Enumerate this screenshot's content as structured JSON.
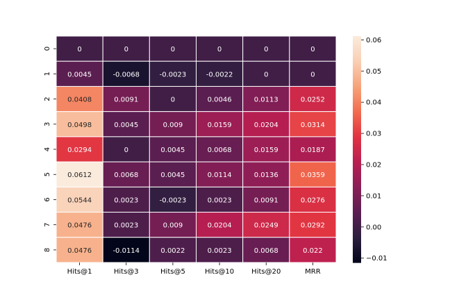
{
  "chart_data": {
    "type": "heatmap",
    "title": "",
    "xlabel": "",
    "ylabel": "",
    "x_categories": [
      "Hits@1",
      "Hits@3",
      "Hits@5",
      "Hits@10",
      "Hits@20",
      "MRR"
    ],
    "y_categories": [
      "0",
      "1",
      "2",
      "3",
      "4",
      "5",
      "6",
      "7",
      "8"
    ],
    "cell_labels": [
      [
        "0",
        "0",
        "0",
        "0",
        "0",
        "0"
      ],
      [
        "0.0045",
        "-0.0068",
        "-0.0023",
        "-0.0022",
        "0",
        "0"
      ],
      [
        "0.0408",
        "0.0091",
        "0",
        "0.0046",
        "0.0113",
        "0.0252"
      ],
      [
        "0.0498",
        "0.0045",
        "0.009",
        "0.0159",
        "0.0204",
        "0.0314"
      ],
      [
        "0.0294",
        "0",
        "0.0045",
        "0.0068",
        "0.0159",
        "0.0187"
      ],
      [
        "0.0612",
        "0.0068",
        "0.0045",
        "0.0114",
        "0.0136",
        "0.0359"
      ],
      [
        "0.0544",
        "0.0023",
        "-0.0023",
        "0.0023",
        "0.0091",
        "0.0276"
      ],
      [
        "0.0476",
        "0.0023",
        "0.009",
        "0.0204",
        "0.0249",
        "0.0292"
      ],
      [
        "0.0476",
        "-0.0114",
        "0.0022",
        "0.0023",
        "0.0068",
        "0.022"
      ]
    ],
    "values": [
      [
        0,
        0,
        0,
        0,
        0,
        0
      ],
      [
        0.0045,
        -0.0068,
        -0.0023,
        -0.0022,
        0,
        0
      ],
      [
        0.0408,
        0.0091,
        0,
        0.0046,
        0.0113,
        0.0252
      ],
      [
        0.0498,
        0.0045,
        0.009,
        0.0159,
        0.0204,
        0.0314
      ],
      [
        0.0294,
        0,
        0.0045,
        0.0068,
        0.0159,
        0.0187
      ],
      [
        0.0612,
        0.0068,
        0.0045,
        0.0114,
        0.0136,
        0.0359
      ],
      [
        0.0544,
        0.0023,
        -0.0023,
        0.0023,
        0.0091,
        0.0276
      ],
      [
        0.0476,
        0.0023,
        0.009,
        0.0204,
        0.0249,
        0.0292
      ],
      [
        0.0476,
        -0.0114,
        0.0022,
        0.0023,
        0.0068,
        0.022
      ]
    ],
    "colorbar": {
      "min": -0.0114,
      "max": 0.0612,
      "ticks": [
        -0.01,
        0.0,
        0.01,
        0.02,
        0.03,
        0.04,
        0.05,
        0.06
      ],
      "tick_labels": [
        "−0.01",
        "0.00",
        "0.01",
        "0.02",
        "0.03",
        "0.04",
        "0.05",
        "0.06"
      ],
      "colormap": "rocket",
      "colormap_stops": [
        "#03051a",
        "#2c1e3e",
        "#5c1e51",
        "#8a1e56",
        "#b91e51",
        "#e13342",
        "#f26c4e",
        "#f6a47b",
        "#f9cfb4",
        "#faebdd"
      ]
    },
    "grid": false,
    "cell_text_colors": {
      "dark_bg": "#ffffff",
      "light_bg": "#262626"
    },
    "cell_border_color": "#ffffff"
  }
}
